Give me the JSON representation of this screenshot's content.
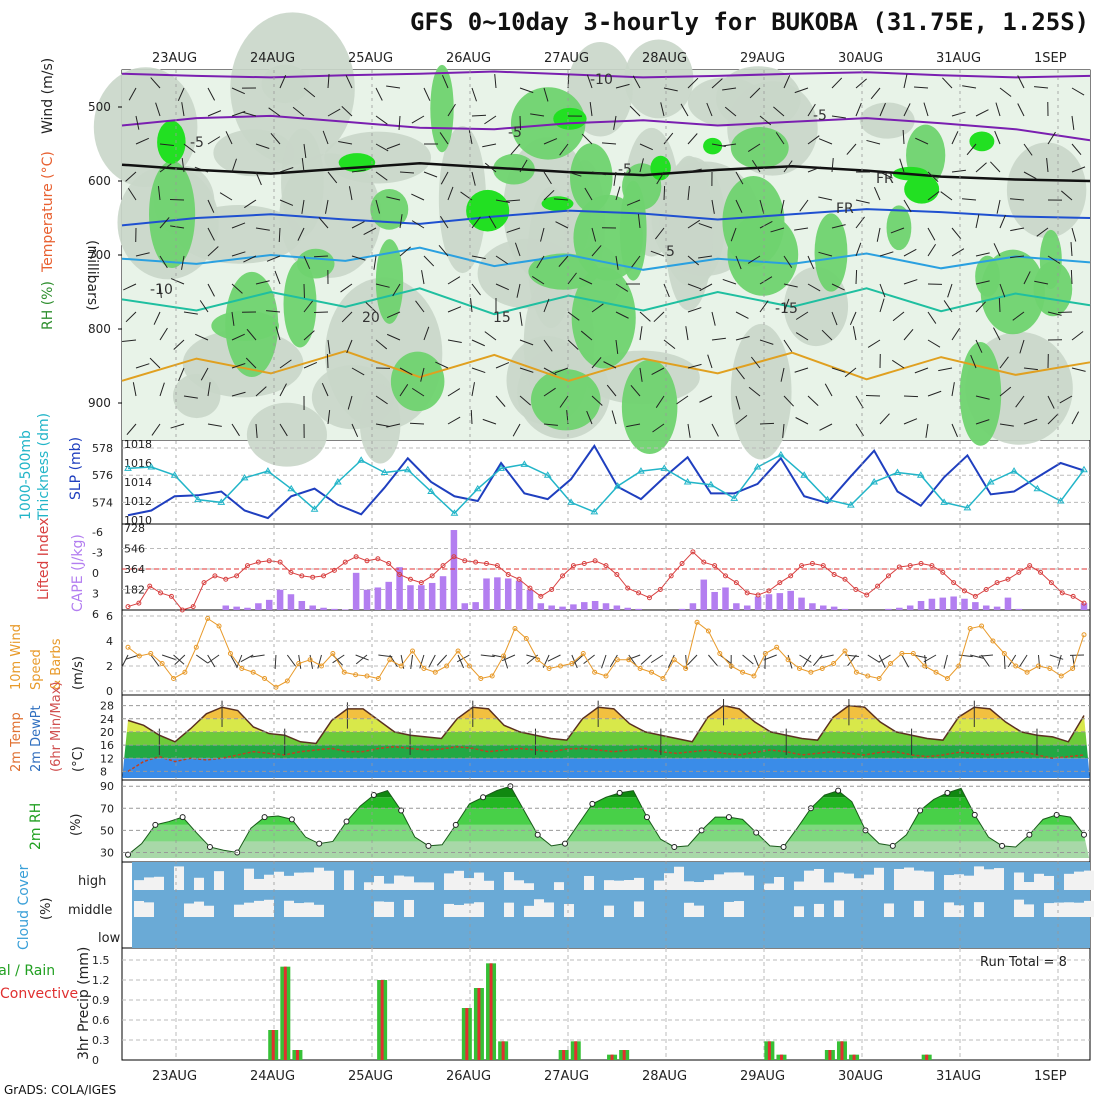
{
  "title": "GFS 0~10day 3-hourly for BUKOBA (31.75E, 1.25S)",
  "credit": "GrADS: COLA/IGES",
  "colors": {
    "rh_band1": "#e8f3e8",
    "rh_band2": "#c9d6c9",
    "rh_band3": "#6fd36f",
    "rh_band4": "#22e022",
    "thickness_line": "#22b5c8",
    "slp_line": "#1f3fbf",
    "cape_bar": "#b37ef0",
    "lifted_line": "#d84040",
    "wind_line": "#e89a2a",
    "temp_line": "#5a3020",
    "rh2m_fill": "#28b828",
    "cloud_bg": "#6aaad6",
    "cloud_fill": "#f2f2f2",
    "rain_bar": "#36c036",
    "conv_bar": "#e03030"
  },
  "chart_data": [
    {
      "id": "cross_section",
      "type": "heatmap",
      "ylabel": "(millibars)",
      "left_labels": [
        "RH (%)",
        "Temperature (°C)",
        "Wind (m/s)"
      ],
      "x_ticks": [
        "23AUG",
        "24AUG",
        "25AUG",
        "26AUG",
        "27AUG",
        "28AUG",
        "29AUG",
        "30AUG",
        "31AUG",
        "1SEP"
      ],
      "y_ticks": [
        500,
        600,
        700,
        800,
        900
      ],
      "ylim": [
        950,
        450
      ],
      "temperature_contour_labels": [
        "-10",
        "-5",
        "-5",
        "-5",
        "-5",
        "FR",
        "FR",
        "5",
        "-10",
        "15",
        "20",
        "-15",
        "15"
      ],
      "contours": [
        {
          "label": "-10",
          "color": "#7a1fb0",
          "level_mb": [
            455,
            458,
            460,
            457,
            455,
            452,
            456,
            460,
            458,
            455,
            453,
            457,
            460,
            458
          ]
        },
        {
          "label": "-5",
          "color": "#7a1fb0",
          "level_mb": [
            525,
            515,
            512,
            520,
            528,
            530,
            522,
            518,
            525,
            520,
            515,
            522,
            530,
            545
          ]
        },
        {
          "label": "FR",
          "color": "#111111",
          "level_mb": [
            578,
            585,
            590,
            583,
            576,
            582,
            588,
            592,
            585,
            580,
            586,
            594,
            598,
            600
          ]
        },
        {
          "label": "5",
          "color": "#1f50d0",
          "level_mb": [
            660,
            650,
            645,
            652,
            658,
            648,
            640,
            644,
            652,
            645,
            638,
            642,
            648,
            650
          ]
        },
        {
          "label": "10",
          "color": "#2aa0e0",
          "level_mb": [
            705,
            712,
            700,
            708,
            690,
            715,
            700,
            720,
            705,
            712,
            698,
            718,
            702,
            710
          ]
        },
        {
          "label": "15",
          "color": "#1fbfa0",
          "level_mb": [
            760,
            775,
            750,
            770,
            745,
            780,
            755,
            775,
            750,
            770,
            745,
            776,
            752,
            768
          ]
        },
        {
          "label": "20",
          "color": "#e0a020",
          "level_mb": [
            870,
            840,
            860,
            830,
            865,
            835,
            870,
            840,
            860,
            832,
            868,
            838,
            862,
            845
          ]
        }
      ]
    },
    {
      "id": "thickness_slp",
      "type": "line",
      "left_labels": [
        "1000-500mb",
        "Thickness (dm)"
      ],
      "right_label": "SLP (mb)",
      "ylim_left": [
        573,
        578
      ],
      "ylim_right": [
        1010,
        1018
      ],
      "y_ticks_left": [
        574,
        576,
        578
      ],
      "y_ticks_right": [
        1010,
        1012,
        1014,
        1016,
        1018
      ],
      "series": [
        {
          "name": "Thickness (dm)",
          "values": [
            576.5,
            576.6,
            576.0,
            574.2,
            574.0,
            575.8,
            576.3,
            575.0,
            573.5,
            575.5,
            577.1,
            576.2,
            576.4,
            574.8,
            573.2,
            575.0,
            576.5,
            576.8,
            576.0,
            574.0,
            573.3,
            575.2,
            576.3,
            576.5,
            575.5,
            575.3,
            574.3,
            576.6,
            577.5,
            576.0,
            574.2,
            573.8,
            575.5,
            576.2,
            576.0,
            574.0,
            573.6,
            575.5,
            576.3,
            575.0,
            574.1,
            576.4
          ]
        },
        {
          "name": "SLP (mb)",
          "values": [
            1010.5,
            1011.0,
            1012.5,
            1012.6,
            1013.0,
            1011.0,
            1010.2,
            1012.5,
            1013.3,
            1011.6,
            1010.6,
            1013.4,
            1016.5,
            1014.0,
            1012.5,
            1012.0,
            1016.0,
            1012.8,
            1012.2,
            1014.3,
            1017.8,
            1013.5,
            1012.2,
            1014.5,
            1016.6,
            1012.8,
            1012.8,
            1013.8,
            1016.5,
            1012.5,
            1011.8,
            1014.6,
            1017.3,
            1013.0,
            1011.5,
            1014.5,
            1016.8,
            1012.7,
            1013.0,
            1014.5,
            1016.0,
            1015.2
          ]
        }
      ]
    },
    {
      "id": "cape_li",
      "type": "bar",
      "left_labels": [
        "Lifted Index"
      ],
      "right_label": "CAPE (J/kg)",
      "y_ticks_left": [
        "-6",
        "-3",
        "0",
        "3",
        "6"
      ],
      "y_ticks_right": [
        182,
        364,
        546,
        728
      ],
      "ylim_cape": [
        0,
        728
      ],
      "series": [
        {
          "name": "CAPE (J/kg)",
          "values": [
            0,
            0,
            0,
            0,
            0,
            0,
            0,
            0,
            0,
            40,
            30,
            20,
            60,
            90,
            180,
            140,
            80,
            40,
            20,
            10,
            5,
            330,
            180,
            200,
            250,
            380,
            220,
            220,
            240,
            300,
            710,
            60,
            70,
            280,
            290,
            280,
            260,
            180,
            60,
            40,
            30,
            50,
            70,
            80,
            60,
            40,
            20,
            10,
            0,
            0,
            0,
            10,
            60,
            270,
            160,
            200,
            60,
            40,
            120,
            140,
            150,
            170,
            110,
            60,
            40,
            30,
            10,
            0,
            0,
            0,
            10,
            20,
            40,
            80,
            100,
            110,
            120,
            100,
            70,
            40,
            30,
            110,
            10,
            0,
            0,
            0,
            0,
            0,
            60
          ]
        },
        {
          "name": "Lifted Index",
          "values": [
            5.5,
            5.0,
            2.5,
            3.5,
            4.0,
            6.0,
            5.5,
            2.0,
            1.0,
            1.5,
            1.0,
            -0.5,
            -1.0,
            -1.2,
            -1.0,
            0.5,
            1.0,
            1.2,
            1.0,
            0.2,
            -1.0,
            -1.8,
            -1.2,
            -1.5,
            -0.8,
            0.8,
            1.5,
            2.0,
            1.0,
            -0.5,
            -1.8,
            -1.2,
            -1.0,
            -0.8,
            -0.5,
            0.8,
            1.5,
            2.8,
            4.0,
            3.0,
            1.0,
            -0.5,
            -0.8,
            -1.2,
            -0.5,
            0.8,
            2.8,
            3.5,
            4.2,
            3.0,
            1.0,
            -0.8,
            -2.5,
            -1.0,
            -0.5,
            1.0,
            2.0,
            3.5,
            3.8,
            3.2,
            2.0,
            1.0,
            -0.5,
            -0.8,
            -0.5,
            0.8,
            1.5,
            3.0,
            3.8,
            2.5,
            1.0,
            -0.3,
            -0.5,
            -0.8,
            -0.5,
            0.5,
            2.0,
            3.2,
            4.0,
            3.0,
            2.0,
            1.5,
            0.5,
            -0.5,
            0.5,
            2.0,
            3.5,
            4.0,
            5.0
          ]
        }
      ]
    },
    {
      "id": "wind10m",
      "type": "line",
      "left_labels": [
        "10m Wind",
        "Speed",
        "& Barbs",
        "(m/s)"
      ],
      "ylim": [
        0,
        6
      ],
      "y_ticks": [
        0,
        2,
        4,
        6
      ],
      "series": [
        {
          "name": "10m Wind Speed",
          "values": [
            3.5,
            2.8,
            3.0,
            2.2,
            1.0,
            1.5,
            3.5,
            5.8,
            5.2,
            3.0,
            1.8,
            1.5,
            1.0,
            0.3,
            0.8,
            2.2,
            2.5,
            2.0,
            3.0,
            1.5,
            1.3,
            1.2,
            1.0,
            2.5,
            2.0,
            3.2,
            1.8,
            1.5,
            2.0,
            3.2,
            2.0,
            1.0,
            1.2,
            2.8,
            5.0,
            4.2,
            2.5,
            1.8,
            2.0,
            2.2,
            3.0,
            1.5,
            1.2,
            2.5,
            2.5,
            1.8,
            1.5,
            1.0,
            2.5,
            1.8,
            5.5,
            4.8,
            3.0,
            2.0,
            1.5,
            1.2,
            3.0,
            3.5,
            2.5,
            1.8,
            1.5,
            1.8,
            2.2,
            3.2,
            1.5,
            1.2,
            1.0,
            2.2,
            3.0,
            3.0,
            2.0,
            1.5,
            1.0,
            2.0,
            5.0,
            5.2,
            4.0,
            3.0,
            2.0,
            1.5,
            2.0,
            1.8,
            1.2,
            1.8,
            4.5
          ]
        }
      ]
    },
    {
      "id": "temp2m",
      "type": "area",
      "left_labels": [
        "2m Temp",
        "2m DewPt",
        "(6hr Min/Max)",
        "(°C)"
      ],
      "ylim": [
        6,
        30
      ],
      "y_ticks": [
        8,
        12,
        16,
        20,
        24,
        28
      ],
      "series": [
        {
          "name": "2m Temp",
          "values": [
            23.5,
            22.0,
            19.0,
            17.0,
            21.0,
            25.5,
            27.5,
            26.5,
            21.5,
            19.5,
            19.0,
            17.0,
            16.5,
            23.5,
            27.0,
            27.0,
            23.5,
            20.0,
            19.0,
            18.5,
            18.0,
            24.0,
            27.5,
            27.0,
            22.0,
            20.0,
            19.0,
            18.0,
            17.5,
            24.0,
            27.5,
            27.0,
            22.5,
            20.0,
            19.0,
            18.0,
            17.0,
            24.5,
            28.0,
            27.0,
            23.0,
            20.0,
            19.0,
            18.0,
            17.5,
            24.5,
            28.0,
            27.5,
            23.0,
            20.0,
            19.0,
            18.0,
            17.5,
            24.5,
            27.5,
            27.0,
            23.0,
            20.0,
            19.0,
            18.5,
            17.0,
            25.0
          ]
        },
        {
          "name": "2m DewPt",
          "values": [
            8.0,
            11.0,
            12.5,
            11.0,
            12.0,
            11.5,
            12.0,
            13.0,
            14.0,
            13.5,
            13.0,
            14.0,
            14.5,
            15.0,
            14.0,
            14.0,
            15.0,
            15.5,
            15.0,
            14.5,
            14.8,
            15.5,
            15.0,
            14.0,
            14.5,
            15.0,
            14.5,
            14.0,
            14.8,
            15.0,
            14.5,
            14.0,
            14.5,
            15.0,
            14.0,
            13.5,
            14.0,
            14.5,
            13.5,
            13.0,
            13.8,
            14.5,
            14.0,
            13.0,
            13.5,
            14.0,
            13.5,
            13.0,
            13.8,
            14.0,
            13.0,
            12.5,
            13.0,
            13.8,
            13.5,
            13.0,
            13.5,
            14.0,
            13.0,
            12.0,
            12.5,
            13.0
          ]
        }
      ]
    },
    {
      "id": "rh2m",
      "type": "area",
      "left_labels": [
        "2m RH",
        "(%)"
      ],
      "ylim": [
        25,
        92
      ],
      "y_ticks": [
        30,
        50,
        70,
        90
      ],
      "series": [
        {
          "name": "2m RH",
          "values": [
            28,
            38,
            55,
            58,
            62,
            48,
            35,
            32,
            30,
            52,
            62,
            63,
            60,
            44,
            38,
            40,
            58,
            72,
            82,
            86,
            68,
            44,
            36,
            37,
            55,
            74,
            80,
            86,
            90,
            68,
            46,
            36,
            38,
            56,
            74,
            80,
            84,
            86,
            62,
            42,
            35,
            36,
            50,
            62,
            62,
            60,
            48,
            36,
            35,
            52,
            70,
            82,
            86,
            76,
            50,
            38,
            36,
            46,
            68,
            78,
            84,
            88,
            64,
            44,
            36,
            35,
            46,
            60,
            64,
            62,
            46
          ]
        }
      ]
    },
    {
      "id": "cloud",
      "type": "heatmap",
      "left_labels": [
        "Cloud Cover",
        "(%)"
      ],
      "y_tick_labels": [
        "high",
        "middle",
        "low"
      ]
    },
    {
      "id": "precip",
      "type": "bar",
      "left_labels": [
        "Total / Rain",
        "Convective",
        "3hr Precip (mm)"
      ],
      "annotation": "Run Total = 8",
      "ylim": [
        0,
        1.5
      ],
      "y_ticks": [
        0,
        0.3,
        0.6,
        0.9,
        1.2,
        1.5
      ],
      "x_ticks": [
        "23AUG",
        "24AUG",
        "25AUG",
        "26AUG",
        "27AUG",
        "28AUG",
        "29AUG",
        "30AUG",
        "31AUG",
        "1SEP"
      ],
      "bars": [
        {
          "slot": 12,
          "value": 0.45
        },
        {
          "slot": 13,
          "value": 1.4
        },
        {
          "slot": 14,
          "value": 0.15
        },
        {
          "slot": 21,
          "value": 1.2
        },
        {
          "slot": 28,
          "value": 0.78
        },
        {
          "slot": 29,
          "value": 1.08
        },
        {
          "slot": 30,
          "value": 1.45
        },
        {
          "slot": 31,
          "value": 0.28
        },
        {
          "slot": 36,
          "value": 0.15
        },
        {
          "slot": 37,
          "value": 0.28
        },
        {
          "slot": 40,
          "value": 0.08
        },
        {
          "slot": 41,
          "value": 0.15
        },
        {
          "slot": 53,
          "value": 0.28
        },
        {
          "slot": 54,
          "value": 0.08
        },
        {
          "slot": 58,
          "value": 0.15
        },
        {
          "slot": 59,
          "value": 0.28
        },
        {
          "slot": 60,
          "value": 0.08
        },
        {
          "slot": 66,
          "value": 0.08
        }
      ]
    }
  ]
}
